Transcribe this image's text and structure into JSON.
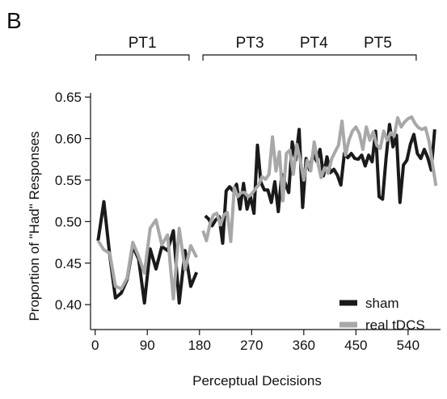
{
  "panel_label": "B",
  "brackets": [
    {
      "labels": [
        "PT1"
      ],
      "x_start": 1,
      "x_end": 162
    },
    {
      "labels": [
        "PT3",
        "PT4",
        "PT5"
      ],
      "x_start": 186,
      "x_end": 554
    }
  ],
  "chart_data": {
    "type": "line",
    "title": "",
    "xlabel": "Perceptual Decisions",
    "ylabel": "Proportion of \"Had\" Responses",
    "xlim": [
      -8,
      596
    ],
    "ylim": [
      0.37,
      0.655
    ],
    "xticks": [
      0,
      90,
      180,
      270,
      360,
      450,
      540
    ],
    "yticks": [
      0.4,
      0.45,
      0.5,
      0.55,
      0.6,
      0.65
    ],
    "ytick_labels": [
      "0.40",
      "0.45",
      "0.50",
      "0.55",
      "0.60",
      "0.65"
    ],
    "grid": false,
    "legend_position": "bottom-right",
    "series": [
      {
        "name": "sham",
        "color": "#1a1a1a",
        "segments": [
          {
            "x": [
              5,
              15,
              25,
              35,
              45,
              55,
              65,
              75,
              85,
              95,
              105,
              115,
              125,
              135,
              145,
              155,
              165,
              175
            ],
            "y": [
              0.477,
              0.524,
              0.46,
              0.408,
              0.414,
              0.43,
              0.47,
              0.455,
              0.402,
              0.467,
              0.443,
              0.47,
              0.465,
              0.489,
              0.402,
              0.465,
              0.422,
              0.439
            ]
          },
          {
            "x": [
              190,
              196,
              202,
              208,
              214,
              220,
              226,
              232,
              238,
              244,
              250,
              256,
              262,
              268,
              274,
              280,
              286,
              292,
              298,
              304,
              310,
              316,
              322,
              328,
              334,
              340,
              346,
              352,
              358,
              364,
              370,
              376,
              382,
              388,
              394,
              400,
              406,
              412,
              418,
              424,
              430,
              436,
              442,
              448,
              454,
              460,
              466,
              472,
              478,
              484,
              490,
              496,
              502,
              508,
              514,
              520,
              526,
              532,
              538,
              544,
              550,
              556,
              562,
              568,
              574,
              580,
              586
            ],
            "y": [
              0.507,
              0.503,
              0.495,
              0.502,
              0.506,
              0.474,
              0.537,
              0.542,
              0.537,
              0.545,
              0.515,
              0.546,
              0.515,
              0.53,
              0.51,
              0.592,
              0.547,
              0.538,
              0.538,
              0.523,
              0.548,
              0.512,
              0.557,
              0.546,
              0.535,
              0.596,
              0.574,
              0.611,
              0.517,
              0.576,
              0.562,
              0.581,
              0.573,
              0.587,
              0.555,
              0.578,
              0.559,
              0.563,
              0.556,
              0.544,
              0.582,
              0.577,
              0.582,
              0.576,
              0.575,
              0.58,
              0.567,
              0.58,
              0.572,
              0.609,
              0.53,
              0.527,
              0.576,
              0.617,
              0.59,
              0.604,
              0.523,
              0.568,
              0.574,
              0.593,
              0.605,
              0.582,
              0.576,
              0.587,
              0.577,
              0.562,
              0.611
            ]
          }
        ]
      },
      {
        "name": "real tDCS",
        "color": "#a8a8a8",
        "segments": [
          {
            "x": [
              5,
              15,
              25,
              35,
              45,
              55,
              65,
              75,
              85,
              95,
              105,
              115,
              125,
              135,
              145,
              155,
              165,
              175
            ],
            "y": [
              0.477,
              0.466,
              0.462,
              0.422,
              0.419,
              0.432,
              0.475,
              0.458,
              0.438,
              0.492,
              0.502,
              0.472,
              0.484,
              0.407,
              0.492,
              0.442,
              0.471,
              0.457
            ]
          },
          {
            "x": [
              186,
              192,
              198,
              204,
              210,
              216,
              222,
              228,
              234,
              240,
              246,
              252,
              258,
              264,
              270,
              276,
              282,
              288,
              294,
              300,
              306,
              312,
              318,
              324,
              330,
              336,
              342,
              348,
              354,
              360,
              366,
              372,
              378,
              384,
              390,
              396,
              402,
              408,
              414,
              420,
              426,
              432,
              438,
              444,
              450,
              456,
              462,
              468,
              474,
              480,
              486,
              492,
              498,
              504,
              510,
              516,
              522,
              528,
              534,
              540,
              546,
              552,
              558,
              564,
              570,
              576,
              582,
              588
            ],
            "y": [
              0.489,
              0.477,
              0.497,
              0.508,
              0.51,
              0.496,
              0.508,
              0.511,
              0.476,
              0.541,
              0.53,
              0.535,
              0.535,
              0.53,
              0.533,
              0.539,
              0.544,
              0.554,
              0.551,
              0.557,
              0.602,
              0.561,
              0.584,
              0.525,
              0.582,
              0.586,
              0.557,
              0.593,
              0.574,
              0.55,
              0.574,
              0.561,
              0.596,
              0.572,
              0.553,
              0.565,
              0.558,
              0.575,
              0.584,
              0.592,
              0.621,
              0.58,
              0.598,
              0.609,
              0.614,
              0.606,
              0.587,
              0.614,
              0.598,
              0.608,
              0.592,
              0.588,
              0.609,
              0.598,
              0.607,
              0.603,
              0.625,
              0.614,
              0.62,
              0.624,
              0.626,
              0.618,
              0.613,
              0.611,
              0.613,
              0.597,
              0.57,
              0.543
            ]
          }
        ]
      }
    ]
  }
}
